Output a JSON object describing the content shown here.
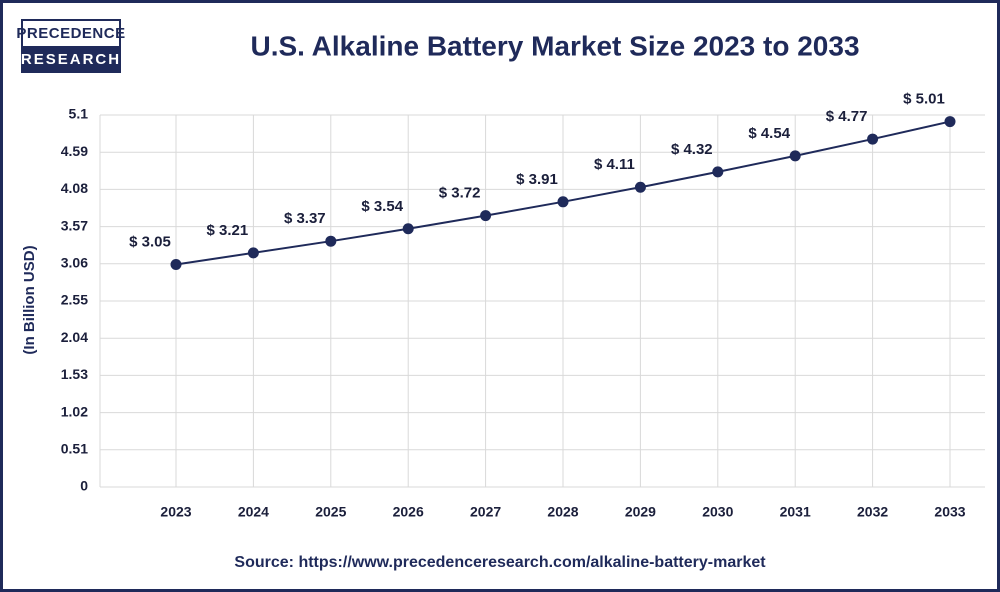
{
  "logo": {
    "line1": "PRECEDENCE",
    "line2": "RESEARCH"
  },
  "chart_data": {
    "type": "line",
    "title": "U.S. Alkaline Battery Market Size 2023 to 2033",
    "y_label": "(In Billion USD)",
    "source": "Source: https://www.precedenceresearch.com/alkaline-battery-market",
    "categories": [
      "2023",
      "2024",
      "2025",
      "2026",
      "2027",
      "2028",
      "2029",
      "2030",
      "2031",
      "2032",
      "2033"
    ],
    "values": [
      3.05,
      3.21,
      3.37,
      3.54,
      3.72,
      3.91,
      4.11,
      4.32,
      4.54,
      4.77,
      5.01
    ],
    "value_labels": [
      "$ 3.05",
      "$ 3.21",
      "$ 3.37",
      "$ 3.54",
      "$ 3.72",
      "$ 3.91",
      "$ 4.11",
      "$ 4.32",
      "$ 4.54",
      "$ 4.77",
      "$ 5.01"
    ],
    "color": "#1f2a5a",
    "ylim": [
      0,
      5.1
    ],
    "yticks": [
      0,
      0.51,
      1.02,
      1.53,
      2.04,
      2.55,
      3.06,
      3.57,
      4.08,
      4.59,
      5.1
    ],
    "grid": true
  }
}
